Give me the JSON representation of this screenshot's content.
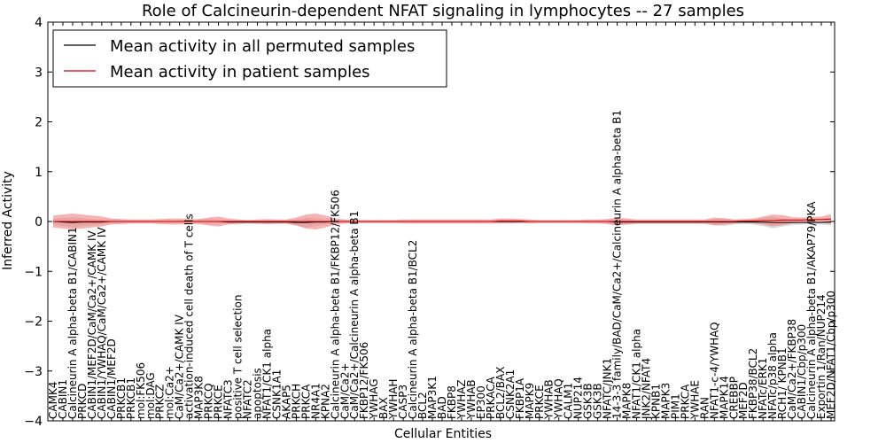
{
  "chart_data": {
    "type": "line",
    "title": "Role of Calcineurin-dependent NFAT signaling in lymphocytes -- 27 samples",
    "xlabel": "Cellular Entities",
    "ylabel": "Inferred Activity",
    "ylim": [
      -4,
      4
    ],
    "yticks": [
      -4,
      -3,
      -2,
      -1,
      0,
      1,
      2,
      3,
      4
    ],
    "ytick_labels": [
      "−4",
      "−3",
      "−2",
      "−1",
      "0",
      "1",
      "2",
      "3",
      "4"
    ],
    "grid": false,
    "legend_position": "top-left",
    "series_colors": {
      "permuted": "#000000",
      "patient": "#dd0000",
      "patient_band": "#f08080",
      "permuted_band": "#b0b0b0"
    },
    "categories": [
      "CAMK4",
      "CABIN1",
      "Calcineurin A alpha-beta B1/CABIN1",
      "PRKCD",
      "CABIN1/MEF2D/CaM/Ca2+/CAMK IV",
      "CABIN1/YWHAQ/CaM/Ca2+/CAMK IV",
      "CABIN1/MEF2D",
      "PRKCB1",
      "PRKCB1",
      "mol:FK506",
      "mol:DAG",
      "PRKCZ",
      "mol:Ca2+",
      "CaM/Ca2+/CAMK IV",
      "activation-induced cell death of T cells",
      "MAP3K8",
      "PRKCQ",
      "PRKCE",
      "NFATC3",
      "positive T cell selection",
      "NFATC2",
      "apoptosis",
      "NFAT1/CK1 alpha",
      "CSNK1A1",
      "AKAP5",
      "PRKCH",
      "PRKCA",
      "NR4A1",
      "KPNA2",
      "Calcineurin A alpha-beta B1/FKBP12/FK506",
      "CaM/Ca2+",
      "CaM/Ca2+/Calcineurin A alpha-beta B1",
      "FKBP12/FK506",
      "YWHAG",
      "BAX",
      "YWHAH",
      "CASP3",
      "Calcineurin A alpha-beta B1/BCL2",
      "BCL2",
      "MAP3K1",
      "BAD",
      "FKBP8",
      "YWHAZ",
      "YWHAB",
      "EP300",
      "PRKACA",
      "BCL2/BAX",
      "CSNK2A1",
      "FKBP1A",
      "MAPK9",
      "PRKCE",
      "YWHAB",
      "YWHAQ",
      "CALM1",
      "NUP214",
      "GSK3B",
      "GSK3B",
      "NFATC/JNK1",
      "14-3-3 family/BAD/CaM/Ca2+/Calcineurin A alpha-beta B1",
      "MAPK8",
      "NFAT1/CK1 alpha",
      "JNK2/NFAT4",
      "KPNB1",
      "MAPK3",
      "PIM1",
      "PRKCA",
      "YWHAE",
      "RAN",
      "NFAT1-c-4/YWHAQ",
      "MAPK14",
      "CREBBP",
      "MEF2D",
      "FKBP38/BCL2",
      "NFATc/ERK1",
      "NFATc/p38 alpha",
      "RCH1/ KPNB1",
      "CaM/Ca2+/FKBP38",
      "CABIN1/Cbp/p300",
      "Calcineurin A alpha-beta B1/AKAP79/PKA",
      "Exportin 1/Ran/NUP214",
      "MEF2D/NFAT1/Cbp/p300"
    ],
    "series": [
      {
        "name": "Mean activity in all permuted samples",
        "values": [
          0.0,
          -0.01,
          -0.02,
          -0.01,
          -0.01,
          -0.01,
          0.0,
          0.0,
          0.0,
          0.0,
          0.0,
          0.0,
          0.0,
          0.0,
          0.0,
          0.0,
          0.0,
          0.0,
          -0.01,
          -0.01,
          -0.01,
          -0.01,
          -0.01,
          -0.01,
          -0.01,
          -0.02,
          -0.02,
          -0.01,
          -0.01,
          0.0,
          0.0,
          0.0,
          0.0,
          0.0,
          0.0,
          0.0,
          0.0,
          0.0,
          0.0,
          0.0,
          0.0,
          0.0,
          0.0,
          0.0,
          0.0,
          0.0,
          0.0,
          0.0,
          0.0,
          0.0,
          0.0,
          0.0,
          0.0,
          0.0,
          0.0,
          0.0,
          0.0,
          0.0,
          -0.01,
          -0.01,
          -0.01,
          -0.01,
          -0.01,
          -0.01,
          -0.01,
          -0.01,
          -0.01,
          -0.01,
          -0.01,
          -0.01,
          -0.01,
          -0.01,
          -0.01,
          -0.01,
          -0.02,
          -0.02,
          -0.02,
          -0.02,
          -0.02,
          -0.02,
          -0.01
        ],
        "spread": [
          0.06,
          0.08,
          0.1,
          0.08,
          0.06,
          0.05,
          0.04,
          0.04,
          0.03,
          0.03,
          0.03,
          0.03,
          0.03,
          0.03,
          0.03,
          0.04,
          0.05,
          0.04,
          0.04,
          0.05,
          0.04,
          0.04,
          0.04,
          0.04,
          0.04,
          0.06,
          0.1,
          0.08,
          0.05,
          0.04,
          0.03,
          0.03,
          0.03,
          0.03,
          0.03,
          0.03,
          0.03,
          0.03,
          0.03,
          0.03,
          0.03,
          0.03,
          0.03,
          0.03,
          0.03,
          0.03,
          0.03,
          0.03,
          0.03,
          0.03,
          0.03,
          0.03,
          0.03,
          0.03,
          0.03,
          0.03,
          0.03,
          0.04,
          0.06,
          0.05,
          0.04,
          0.04,
          0.04,
          0.04,
          0.04,
          0.04,
          0.04,
          0.04,
          0.06,
          0.08,
          0.05,
          0.04,
          0.05,
          0.08,
          0.12,
          0.08,
          0.05,
          0.04,
          0.04,
          0.04,
          0.06
        ]
      },
      {
        "name": "Mean activity in patient samples",
        "values": [
          0.0,
          0.0,
          0.0,
          0.0,
          0.0,
          0.0,
          0.0,
          0.0,
          0.0,
          0.0,
          0.0,
          0.0,
          0.0,
          0.0,
          0.0,
          0.0,
          0.0,
          0.0,
          0.0,
          0.0,
          0.0,
          0.0,
          0.0,
          0.0,
          0.0,
          0.0,
          0.0,
          0.0,
          0.0,
          0.0,
          0.0,
          0.0,
          0.0,
          0.0,
          0.0,
          0.0,
          0.0,
          0.0,
          0.0,
          0.0,
          0.0,
          0.0,
          0.0,
          0.0,
          0.0,
          0.0,
          0.01,
          0.01,
          0.01,
          0.0,
          0.0,
          0.0,
          0.0,
          0.0,
          0.0,
          0.0,
          0.0,
          0.0,
          0.0,
          0.0,
          0.0,
          0.0,
          0.0,
          0.0,
          0.0,
          0.0,
          0.0,
          0.0,
          0.0,
          0.0,
          0.0,
          0.01,
          0.01,
          0.02,
          0.02,
          0.03,
          0.03,
          0.03,
          0.04,
          0.04,
          0.05
        ],
        "spread": [
          0.12,
          0.14,
          0.16,
          0.14,
          0.12,
          0.1,
          0.06,
          0.05,
          0.04,
          0.04,
          0.04,
          0.05,
          0.06,
          0.06,
          0.05,
          0.05,
          0.08,
          0.1,
          0.06,
          0.04,
          0.03,
          0.04,
          0.05,
          0.04,
          0.04,
          0.08,
          0.14,
          0.16,
          0.12,
          0.06,
          0.04,
          0.03,
          0.03,
          0.03,
          0.03,
          0.03,
          0.04,
          0.04,
          0.04,
          0.04,
          0.04,
          0.04,
          0.04,
          0.04,
          0.04,
          0.04,
          0.05,
          0.05,
          0.04,
          0.04,
          0.03,
          0.03,
          0.03,
          0.03,
          0.03,
          0.04,
          0.04,
          0.05,
          0.08,
          0.06,
          0.04,
          0.04,
          0.04,
          0.04,
          0.04,
          0.04,
          0.04,
          0.04,
          0.08,
          0.06,
          0.04,
          0.04,
          0.05,
          0.08,
          0.12,
          0.1,
          0.06,
          0.05,
          0.05,
          0.06,
          0.1
        ]
      }
    ]
  }
}
